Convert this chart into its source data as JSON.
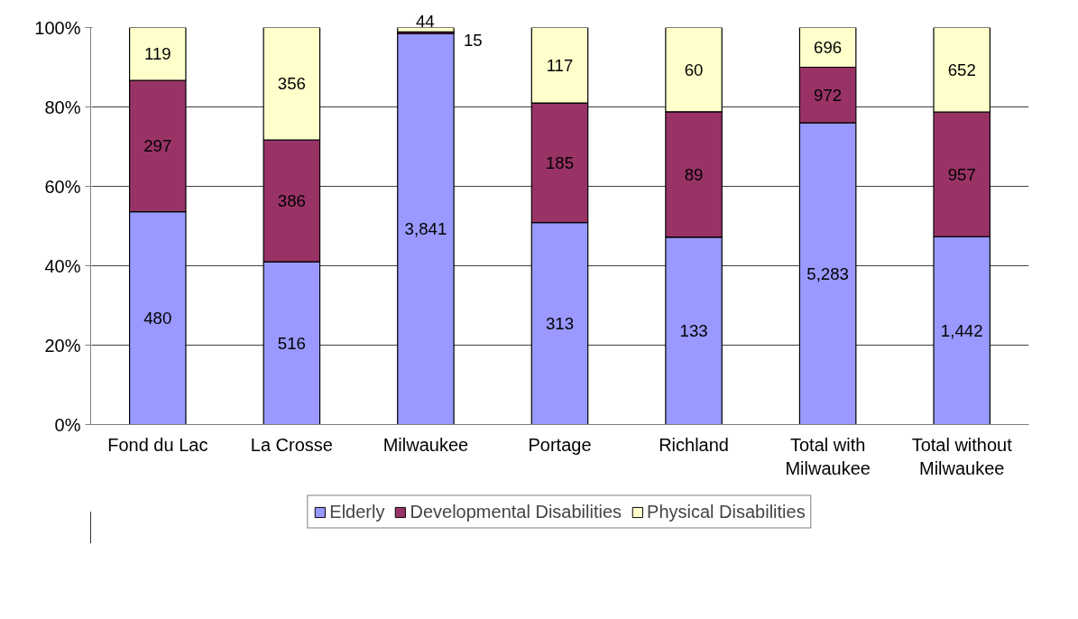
{
  "chart_data": {
    "type": "bar",
    "stacked": true,
    "categories": [
      "Fond du Lac",
      "La Crosse",
      "Milwaukee",
      "Portage",
      "Richland",
      "Total with Milwaukee",
      "Total without Milwaukee"
    ],
    "series": [
      {
        "name": "Elderly",
        "color": "#9999ff",
        "values": [
          53.6,
          41.0,
          98.5,
          50.9,
          47.2,
          76.0,
          47.3
        ]
      },
      {
        "name": "Developmental Disabilities",
        "color": "#993366",
        "values": [
          33.1,
          30.7,
          0.4,
          30.1,
          31.6,
          14.0,
          31.4
        ]
      },
      {
        "name": "Physical Disabilities",
        "color": "#ffffcc",
        "values": [
          13.3,
          28.3,
          1.1,
          19.0,
          21.2,
          10.0,
          21.3
        ]
      }
    ],
    "annotations": [
      "480",
      "297",
      "119",
      "516",
      "386",
      "356",
      "3,841",
      "15",
      "44",
      "313",
      "185",
      "117",
      "133",
      "89",
      "60",
      "5,283",
      "972",
      "696",
      "1,442",
      "957",
      "652"
    ],
    "ylim": [
      0,
      100
    ],
    "yticks": [
      {
        "value": 0,
        "label": "0%"
      },
      {
        "value": 20,
        "label": "20%"
      },
      {
        "value": 40,
        "label": "40%"
      },
      {
        "value": 60,
        "label": "60%"
      },
      {
        "value": 80,
        "label": "80%"
      },
      {
        "value": 100,
        "label": "100%"
      }
    ],
    "grid": "y",
    "legend": "bottom"
  }
}
